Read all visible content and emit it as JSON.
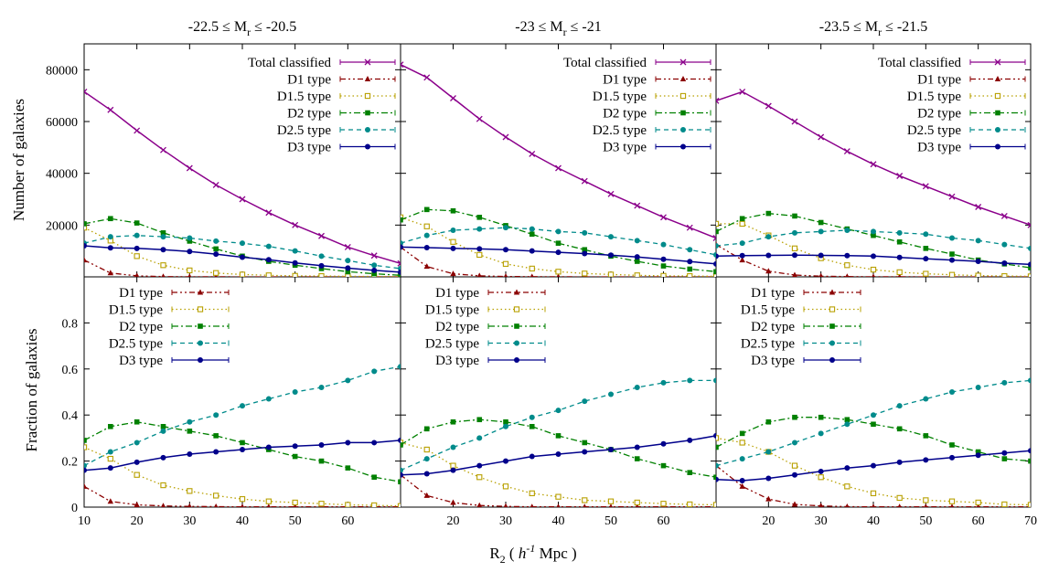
{
  "chart_data": {
    "type": "line",
    "xlabel": "R2 ( h-1 Mpc )",
    "xlabel_parts": {
      "main": "R",
      "sub": "2",
      "open": " ( ",
      "h": "h",
      "exp": "-1",
      "unit": " Mpc )"
    },
    "row_ylabels": [
      "Number of galaxies",
      "Fraction of galaxies"
    ],
    "x": [
      10,
      15,
      20,
      25,
      30,
      35,
      40,
      45,
      50,
      55,
      60,
      65,
      70
    ],
    "xlim": [
      10,
      70
    ],
    "x_ticks_first_panel": [
      "10",
      "20",
      "30",
      "40",
      "50",
      "60"
    ],
    "x_ticks_other_panels": [
      "20",
      "30",
      "40",
      "50",
      "60"
    ],
    "x_ticks_last_panel": [
      "20",
      "30",
      "40",
      "50",
      "60",
      "70"
    ],
    "top_ylim": [
      0,
      90000
    ],
    "top_yticks": [
      "20000",
      "40000",
      "60000",
      "80000"
    ],
    "bottom_ylim": [
      0,
      1.0
    ],
    "bottom_yticks": [
      "0",
      "0.2",
      "0.4",
      "0.6",
      "0.8"
    ],
    "grid": false,
    "legend_placement": "top-right (top row), top-left (bottom row)",
    "series_styles": [
      {
        "key": "total",
        "name": "Total classified",
        "color": "#8b008b",
        "marker": "x",
        "dash": ""
      },
      {
        "key": "d1",
        "name": "D1 type",
        "color": "#8b0000",
        "marker": "triangle",
        "dash": "6,3,2,3,2,3"
      },
      {
        "key": "d15",
        "name": "D1.5 type",
        "color": "#b8a000",
        "marker": "open-square",
        "dash": "1.5,3"
      },
      {
        "key": "d2",
        "name": "D2 type",
        "color": "#008000",
        "marker": "square",
        "dash": "7,3,2,3"
      },
      {
        "key": "d25",
        "name": "D2.5 type",
        "color": "#008b8b",
        "marker": "circle",
        "dash": "5,4"
      },
      {
        "key": "d3",
        "name": "D3 type",
        "color": "#00008b",
        "marker": "circle",
        "dash": ""
      }
    ],
    "panels": [
      {
        "title_main": "-22.5 ≤ M",
        "title_sub": "r",
        "title_end": " ≤ -20.5",
        "counts": {
          "total": [
            71500,
            64500,
            56500,
            49000,
            42000,
            35500,
            30000,
            24800,
            20000,
            15800,
            11500,
            8200,
            5200
          ],
          "d1": [
            6500,
            1500,
            400,
            100,
            50,
            20,
            10,
            5,
            5,
            5,
            5,
            5,
            5
          ],
          "d15": [
            19000,
            14000,
            8000,
            4500,
            2500,
            1500,
            900,
            600,
            400,
            300,
            200,
            150,
            100
          ],
          "d2": [
            20500,
            22500,
            20800,
            17000,
            13800,
            10800,
            8000,
            6000,
            4500,
            3200,
            2000,
            1200,
            600
          ],
          "d25": [
            13000,
            15500,
            16000,
            15500,
            15000,
            13800,
            13000,
            11800,
            10000,
            8000,
            6300,
            4500,
            3200
          ],
          "d3": [
            12000,
            11200,
            11000,
            10500,
            9800,
            8800,
            7600,
            6600,
            5400,
            4300,
            3400,
            2500,
            1800
          ]
        },
        "fractions": {
          "d1": [
            0.09,
            0.025,
            0.01,
            0.005,
            0.003,
            0.002,
            0.001,
            0.001,
            0.001,
            0.001,
            0.001,
            0.001,
            0.001
          ],
          "d15": [
            0.26,
            0.21,
            0.14,
            0.095,
            0.07,
            0.05,
            0.035,
            0.025,
            0.02,
            0.015,
            0.01,
            0.008,
            0.005
          ],
          "d2": [
            0.29,
            0.35,
            0.37,
            0.35,
            0.33,
            0.31,
            0.28,
            0.25,
            0.22,
            0.2,
            0.17,
            0.13,
            0.11
          ],
          "d25": [
            0.18,
            0.24,
            0.28,
            0.33,
            0.37,
            0.4,
            0.44,
            0.47,
            0.5,
            0.52,
            0.55,
            0.59,
            0.61
          ],
          "d3": [
            0.16,
            0.17,
            0.195,
            0.215,
            0.23,
            0.24,
            0.25,
            0.26,
            0.265,
            0.27,
            0.28,
            0.28,
            0.29
          ]
        }
      },
      {
        "title_main": "-23 ≤ M",
        "title_sub": "r",
        "title_end": " ≤ -21",
        "counts": {
          "total": [
            82000,
            77000,
            69000,
            61000,
            54000,
            47500,
            42000,
            37000,
            32000,
            27500,
            23000,
            19000,
            15000
          ],
          "d1": [
            11500,
            4000,
            1200,
            400,
            150,
            60,
            30,
            15,
            10,
            5,
            5,
            5,
            5
          ],
          "d15": [
            23000,
            19500,
            13500,
            8500,
            5000,
            3200,
            2000,
            1300,
            900,
            600,
            400,
            300,
            200
          ],
          "d2": [
            22000,
            26000,
            25500,
            23000,
            19800,
            16500,
            13000,
            10500,
            8000,
            6000,
            4200,
            3000,
            2000
          ],
          "d25": [
            13000,
            16000,
            18000,
            18500,
            19000,
            18500,
            17500,
            17000,
            15500,
            14000,
            12500,
            10500,
            8500
          ],
          "d3": [
            11500,
            11300,
            11000,
            10800,
            10500,
            10000,
            9500,
            9000,
            8400,
            7700,
            6800,
            5900,
            5000
          ]
        },
        "fractions": {
          "d1": [
            0.14,
            0.05,
            0.02,
            0.007,
            0.003,
            0.001,
            0.001,
            0.001,
            0.001,
            0.001,
            0.001,
            0.001,
            0.001
          ],
          "d15": [
            0.28,
            0.25,
            0.18,
            0.13,
            0.09,
            0.06,
            0.045,
            0.03,
            0.025,
            0.02,
            0.015,
            0.012,
            0.01
          ],
          "d2": [
            0.27,
            0.34,
            0.37,
            0.38,
            0.37,
            0.35,
            0.31,
            0.28,
            0.25,
            0.21,
            0.18,
            0.15,
            0.13
          ],
          "d25": [
            0.16,
            0.21,
            0.26,
            0.3,
            0.35,
            0.39,
            0.42,
            0.46,
            0.49,
            0.52,
            0.54,
            0.55,
            0.55
          ],
          "d3": [
            0.14,
            0.145,
            0.16,
            0.18,
            0.2,
            0.22,
            0.23,
            0.24,
            0.25,
            0.26,
            0.275,
            0.29,
            0.31
          ]
        }
      },
      {
        "title_main": "-23.5 ≤ M",
        "title_sub": "r",
        "title_end": " ≤ -21.5",
        "counts": {
          "total": [
            68000,
            71500,
            66000,
            60000,
            54000,
            48500,
            43500,
            39000,
            35000,
            31000,
            27000,
            23500,
            20000
          ],
          "d1": [
            12500,
            6500,
            2200,
            700,
            250,
            100,
            50,
            20,
            10,
            5,
            5,
            5,
            5
          ],
          "d15": [
            20500,
            20500,
            16000,
            11000,
            7200,
            4500,
            2800,
            1800,
            1200,
            800,
            500,
            300,
            200
          ],
          "d2": [
            17500,
            22500,
            24500,
            23500,
            21000,
            18500,
            16000,
            13500,
            11000,
            8800,
            6500,
            5000,
            3500
          ],
          "d25": [
            12000,
            13000,
            15500,
            17000,
            17500,
            18000,
            17500,
            17000,
            16500,
            15000,
            14000,
            12500,
            11000
          ],
          "d3": [
            8000,
            8200,
            8300,
            8400,
            8300,
            8200,
            8000,
            7500,
            7000,
            6500,
            6000,
            5300,
            4800
          ]
        },
        "fractions": {
          "d1": [
            0.18,
            0.09,
            0.035,
            0.012,
            0.005,
            0.002,
            0.001,
            0.001,
            0.001,
            0.001,
            0.001,
            0.001,
            0.001
          ],
          "d15": [
            0.3,
            0.28,
            0.24,
            0.18,
            0.13,
            0.09,
            0.06,
            0.04,
            0.03,
            0.025,
            0.02,
            0.012,
            0.01
          ],
          "d2": [
            0.26,
            0.32,
            0.37,
            0.39,
            0.39,
            0.38,
            0.36,
            0.34,
            0.31,
            0.27,
            0.24,
            0.21,
            0.2
          ],
          "d25": [
            0.18,
            0.21,
            0.24,
            0.28,
            0.32,
            0.36,
            0.4,
            0.44,
            0.47,
            0.5,
            0.52,
            0.54,
            0.55
          ],
          "d3": [
            0.12,
            0.115,
            0.125,
            0.14,
            0.155,
            0.17,
            0.18,
            0.195,
            0.205,
            0.215,
            0.225,
            0.235,
            0.245
          ]
        }
      }
    ]
  }
}
